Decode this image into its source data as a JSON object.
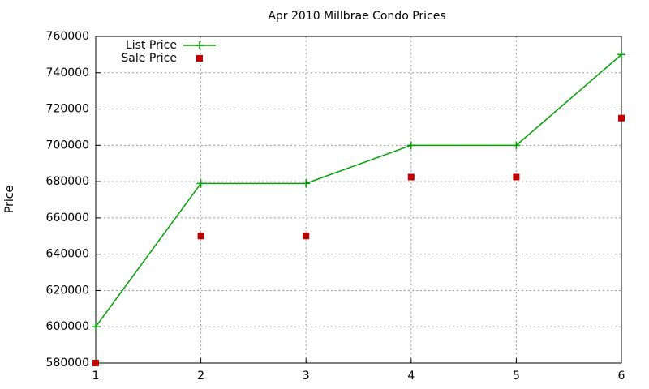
{
  "chart_data": {
    "type": "line",
    "title": "Apr 2010 Millbrae Condo Prices",
    "y_label": "Price",
    "x": [
      1,
      2,
      3,
      4,
      5,
      6
    ],
    "series": [
      {
        "name": "List Price",
        "color": "#00a000",
        "style": "linespoints",
        "values": [
          600000,
          679000,
          679000,
          700000,
          700000,
          750000
        ]
      },
      {
        "name": "Sale Price",
        "color": "#c00000",
        "style": "points",
        "values": [
          580000,
          650000,
          650000,
          682500,
          682500,
          715000
        ]
      }
    ],
    "xlim": [
      1,
      6
    ],
    "xticks": [
      1,
      2,
      3,
      4,
      5,
      6
    ],
    "ylim": [
      580000,
      760000
    ],
    "yticks": [
      580000,
      600000,
      620000,
      640000,
      660000,
      680000,
      700000,
      720000,
      740000,
      760000
    ],
    "grid": true,
    "legend": "top-left"
  }
}
